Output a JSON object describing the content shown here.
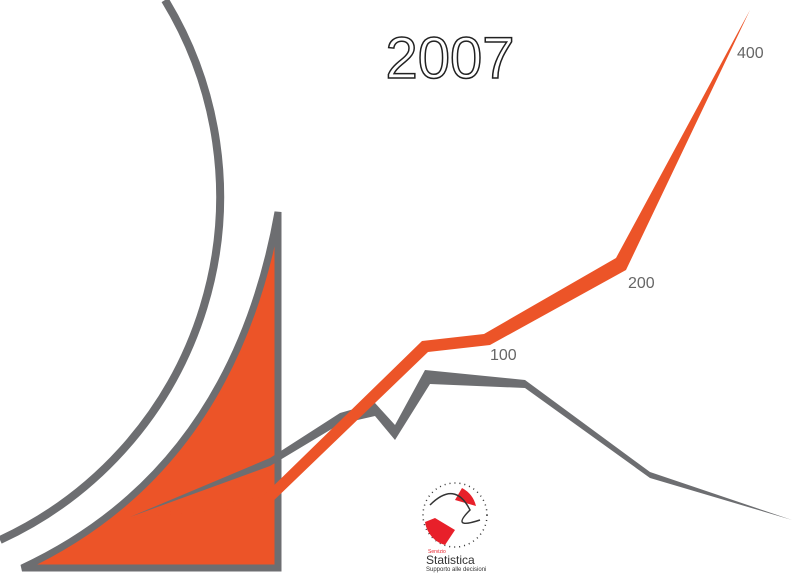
{
  "title": "2007",
  "labels": [
    "400",
    "200",
    "100"
  ],
  "logo": {
    "service": "Servizio",
    "name": "Statistica",
    "tagline": "Supporto alle decisioni"
  }
}
